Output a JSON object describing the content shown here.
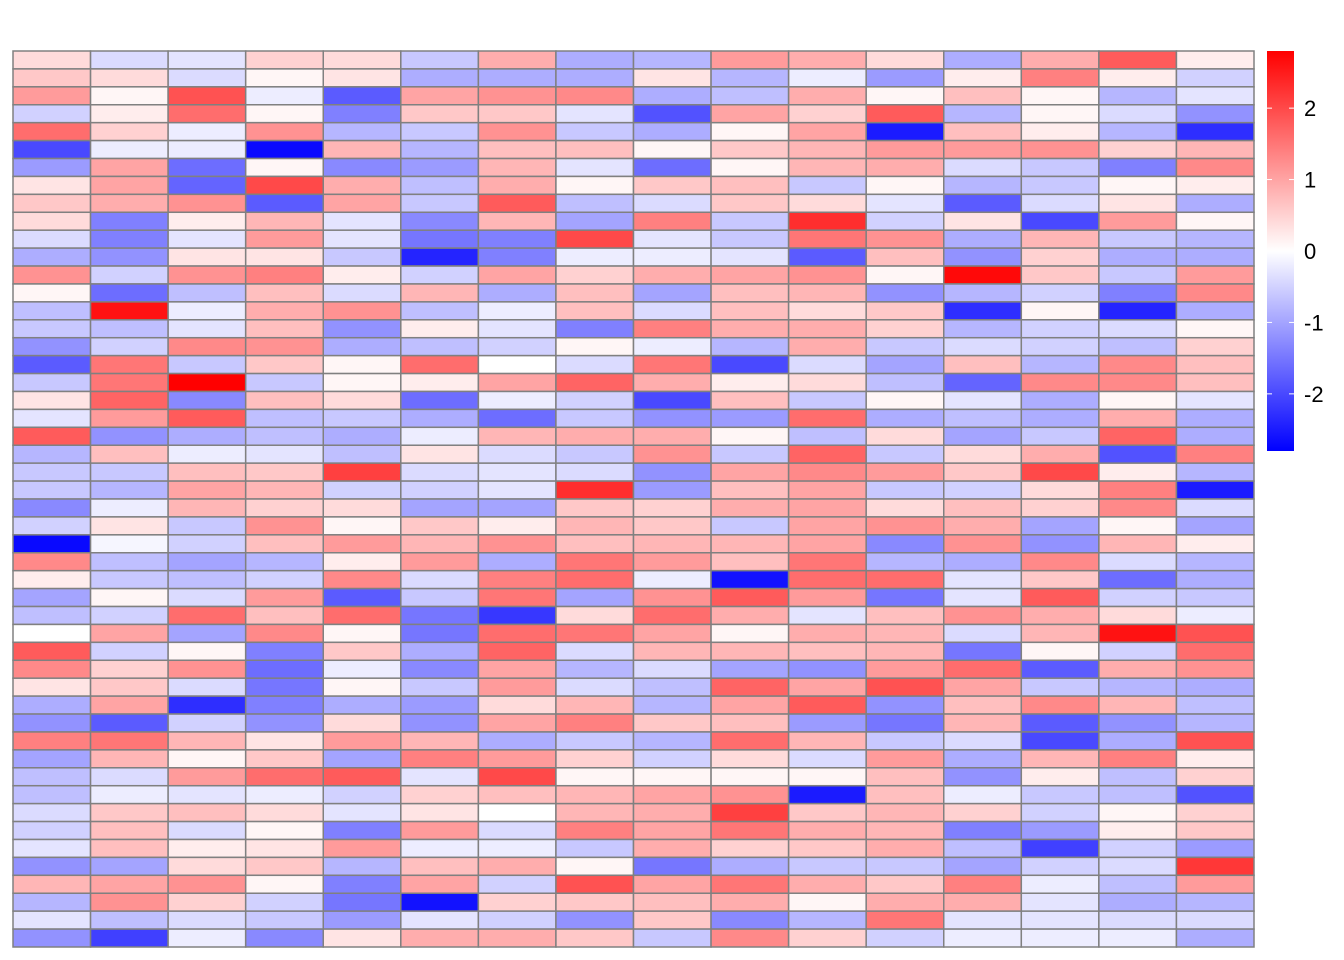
{
  "chart_data": {
    "type": "heatmap",
    "n_rows": 50,
    "n_cols": 16,
    "values": [
      [
        0.4,
        -0.4,
        -0.3,
        0.5,
        0.4,
        -0.6,
        0.9,
        -0.9,
        -0.8,
        1.1,
        0.9,
        0.4,
        -0.9,
        0.9,
        1.8,
        0.2
      ],
      [
        0.6,
        0.4,
        -0.4,
        0.1,
        0.3,
        -0.9,
        -0.9,
        -0.9,
        0.3,
        -0.8,
        -0.2,
        -1.1,
        0.2,
        1.4,
        0.2,
        -0.5
      ],
      [
        1.1,
        0.1,
        1.9,
        -0.2,
        -1.8,
        1.0,
        1.2,
        1.3,
        -0.9,
        -0.7,
        0.9,
        0.1,
        0.7,
        0.1,
        -0.8,
        -0.3
      ],
      [
        -0.5,
        0.2,
        1.6,
        0.1,
        -1.4,
        0.6,
        0.6,
        -0.3,
        -1.9,
        1.0,
        0.5,
        1.8,
        -0.8,
        0.1,
        -0.4,
        -1.2
      ],
      [
        1.6,
        0.5,
        -0.2,
        1.2,
        -0.8,
        -0.6,
        1.2,
        -0.6,
        -0.9,
        0.1,
        1.0,
        -2.5,
        0.7,
        0.2,
        -0.8,
        -2.3
      ],
      [
        -2.0,
        -0.2,
        -0.2,
        -2.7,
        0.8,
        -0.8,
        0.7,
        0.7,
        0.1,
        0.6,
        0.8,
        1.1,
        1.1,
        1.2,
        0.5,
        0.8
      ],
      [
        -1.1,
        1.0,
        -1.6,
        0.1,
        -1.3,
        -1.1,
        0.8,
        -0.3,
        -1.6,
        0.1,
        0.8,
        0.9,
        -0.4,
        -0.6,
        -1.4,
        1.3
      ],
      [
        0.3,
        1.0,
        -1.7,
        2.0,
        0.9,
        -0.7,
        0.9,
        0.1,
        0.6,
        0.7,
        -0.6,
        0.1,
        -0.8,
        -0.6,
        0.1,
        0.2
      ],
      [
        0.6,
        0.9,
        1.2,
        -1.8,
        1.0,
        -0.6,
        1.8,
        -0.7,
        -0.4,
        0.6,
        0.4,
        -0.3,
        -1.8,
        -0.4,
        0.3,
        -0.9
      ],
      [
        0.4,
        -1.4,
        0.2,
        0.8,
        -0.3,
        -1.3,
        0.8,
        -1.0,
        1.4,
        -0.6,
        2.3,
        -0.5,
        0.3,
        -2.0,
        1.1,
        0.1
      ],
      [
        -0.4,
        -1.4,
        -0.3,
        1.1,
        -0.3,
        -1.5,
        -1.4,
        2.0,
        -0.3,
        -0.6,
        1.5,
        1.2,
        -0.9,
        0.8,
        -0.6,
        -0.8
      ],
      [
        -0.9,
        -1.2,
        0.3,
        0.3,
        -0.6,
        -2.4,
        -1.4,
        -0.2,
        -0.2,
        -0.3,
        -1.8,
        0.7,
        -1.2,
        0.5,
        -0.9,
        -0.9
      ],
      [
        1.2,
        -0.5,
        1.2,
        1.4,
        0.2,
        -0.5,
        1.0,
        0.5,
        0.9,
        1.0,
        1.2,
        0.1,
        2.7,
        0.6,
        -0.6,
        1.1
      ],
      [
        0.1,
        -1.6,
        -0.7,
        0.7,
        -0.4,
        0.8,
        -0.9,
        0.7,
        -1.0,
        0.7,
        0.8,
        -1.2,
        -0.8,
        -0.5,
        -1.4,
        1.3
      ],
      [
        -0.7,
        2.6,
        -0.2,
        0.9,
        1.2,
        -0.7,
        -0.2,
        0.7,
        -0.4,
        0.7,
        0.4,
        0.6,
        -2.3,
        0.1,
        -2.4,
        -0.9
      ],
      [
        -0.6,
        -0.7,
        -0.3,
        0.7,
        -1.2,
        0.2,
        -0.3,
        -1.4,
        1.4,
        0.9,
        0.9,
        0.5,
        -0.8,
        -0.5,
        -0.4,
        0.1
      ],
      [
        -1.2,
        -0.5,
        1.3,
        1.2,
        -0.9,
        -0.7,
        -0.5,
        0.1,
        -0.2,
        -0.8,
        0.9,
        -0.6,
        -0.4,
        -0.5,
        -0.7,
        0.5
      ],
      [
        -1.8,
        1.5,
        -0.6,
        0.6,
        0.1,
        1.6,
        0.0,
        -0.4,
        1.5,
        -2.0,
        -0.4,
        -1.0,
        0.7,
        -0.8,
        1.3,
        0.7
      ],
      [
        -0.6,
        1.5,
        2.8,
        -0.6,
        0.1,
        0.2,
        1.0,
        1.7,
        0.9,
        0.2,
        0.4,
        -0.7,
        -1.7,
        1.3,
        1.3,
        0.7
      ],
      [
        0.3,
        1.7,
        -1.3,
        0.7,
        0.4,
        -1.6,
        -0.2,
        -0.5,
        -2.0,
        0.7,
        -0.6,
        0.1,
        -0.3,
        -0.9,
        0.1,
        -0.3
      ],
      [
        -0.3,
        1.1,
        1.8,
        -0.7,
        -0.6,
        -0.9,
        -1.6,
        -0.6,
        -1.2,
        -1.1,
        1.6,
        -0.9,
        -0.7,
        -0.9,
        0.9,
        -0.9
      ],
      [
        1.8,
        -1.2,
        -0.9,
        -0.7,
        -0.9,
        -0.2,
        0.8,
        0.9,
        0.9,
        0.1,
        -0.7,
        0.4,
        -1.0,
        -0.6,
        1.7,
        -0.9
      ],
      [
        -0.8,
        0.7,
        -0.2,
        -0.3,
        -0.7,
        0.3,
        -0.4,
        -0.6,
        1.2,
        -0.6,
        1.7,
        -0.6,
        0.4,
        0.9,
        -1.9,
        1.4
      ],
      [
        -0.6,
        -0.6,
        0.7,
        0.6,
        2.1,
        -0.4,
        -0.3,
        -0.4,
        -1.2,
        1.0,
        1.3,
        1.1,
        0.6,
        2.0,
        0.2,
        -0.8
      ],
      [
        -0.6,
        -0.8,
        1.0,
        0.8,
        -0.5,
        -0.5,
        -0.3,
        2.3,
        -1.1,
        0.7,
        1.0,
        -0.6,
        -0.5,
        0.4,
        1.4,
        -2.5
      ],
      [
        -1.3,
        -0.2,
        0.8,
        0.5,
        0.4,
        -1.0,
        -1.0,
        0.6,
        0.5,
        0.9,
        1.0,
        0.4,
        0.7,
        0.5,
        1.3,
        -0.4
      ],
      [
        -0.5,
        0.3,
        -0.6,
        1.2,
        0.1,
        0.6,
        0.2,
        0.8,
        0.6,
        -0.6,
        1.0,
        1.2,
        0.9,
        -1.0,
        0.1,
        -1.0
      ],
      [
        -2.7,
        -0.1,
        -0.5,
        0.7,
        1.1,
        0.8,
        1.2,
        0.7,
        0.8,
        0.8,
        1.0,
        -1.3,
        1.2,
        -1.2,
        0.8,
        0.2
      ],
      [
        1.3,
        -0.7,
        -1.0,
        -0.8,
        0.2,
        1.1,
        -0.9,
        1.5,
        1.1,
        0.7,
        1.5,
        -0.8,
        -0.9,
        1.3,
        -0.4,
        -0.8
      ],
      [
        0.2,
        -0.6,
        -0.7,
        -0.5,
        1.3,
        -0.4,
        1.4,
        1.6,
        -0.2,
        -2.6,
        1.6,
        1.6,
        -0.3,
        0.6,
        -1.6,
        -0.9
      ],
      [
        -1.0,
        0.1,
        -0.4,
        1.1,
        -1.8,
        -0.6,
        1.5,
        -1.0,
        1.2,
        1.8,
        1.1,
        -1.5,
        -0.3,
        1.8,
        -0.5,
        -0.6
      ],
      [
        -0.7,
        -0.5,
        1.6,
        0.7,
        1.6,
        -1.5,
        -2.2,
        0.4,
        1.6,
        0.9,
        -0.3,
        0.7,
        1.2,
        0.9,
        0.4,
        -0.2
      ],
      [
        0.0,
        1.0,
        -1.0,
        1.3,
        0.1,
        -1.5,
        1.6,
        1.5,
        1.0,
        0.1,
        0.9,
        0.8,
        -0.4,
        0.8,
        2.6,
        1.9
      ],
      [
        1.8,
        -0.5,
        0.1,
        -1.4,
        0.6,
        -0.9,
        1.7,
        -0.4,
        0.8,
        0.8,
        0.7,
        0.8,
        -1.5,
        0.1,
        -0.5,
        1.6
      ],
      [
        1.3,
        0.5,
        1.2,
        -1.6,
        -0.2,
        -1.3,
        1.0,
        -0.8,
        -0.4,
        -1.0,
        -1.2,
        1.1,
        1.6,
        -1.8,
        0.9,
        1.2
      ],
      [
        0.3,
        0.6,
        -0.4,
        -1.5,
        0.1,
        -0.6,
        1.1,
        -0.4,
        -0.7,
        1.7,
        1.0,
        1.9,
        1.0,
        -0.6,
        -0.8,
        -0.9
      ],
      [
        -0.9,
        1.0,
        -2.3,
        -1.4,
        -0.9,
        -1.1,
        0.4,
        0.8,
        -0.8,
        1.0,
        1.8,
        -1.2,
        0.7,
        1.3,
        0.8,
        -0.7
      ],
      [
        -1.2,
        -1.8,
        -0.5,
        -1.2,
        0.4,
        -1.2,
        1.0,
        1.4,
        0.6,
        0.7,
        -1.1,
        -1.5,
        0.8,
        -1.8,
        -1.2,
        -0.8
      ],
      [
        1.4,
        1.5,
        0.8,
        0.3,
        1.1,
        0.8,
        -0.9,
        -0.6,
        -0.8,
        1.6,
        0.8,
        -0.6,
        -0.4,
        -2.0,
        -0.9,
        1.9
      ],
      [
        -1.0,
        0.8,
        0.1,
        0.6,
        -1.0,
        1.4,
        1.1,
        0.5,
        -0.5,
        0.4,
        -0.4,
        1.1,
        -0.9,
        0.8,
        1.4,
        0.2
      ],
      [
        -0.7,
        -0.4,
        1.1,
        1.6,
        1.8,
        -0.3,
        2.0,
        0.1,
        0.1,
        0.1,
        0.1,
        0.7,
        -1.2,
        0.2,
        -0.7,
        0.5
      ],
      [
        -0.7,
        -0.2,
        -0.3,
        -0.2,
        -0.5,
        0.5,
        0.7,
        0.8,
        1.0,
        1.2,
        -2.5,
        0.7,
        -0.2,
        -0.6,
        -0.7,
        -1.9
      ],
      [
        -0.4,
        0.6,
        0.7,
        0.4,
        -0.3,
        0.3,
        0.0,
        0.8,
        0.9,
        2.1,
        0.6,
        0.8,
        0.5,
        -0.5,
        0.1,
        0.5
      ],
      [
        -0.5,
        0.7,
        -0.4,
        0.1,
        -1.4,
        1.1,
        -0.4,
        1.4,
        1.0,
        1.5,
        0.9,
        0.8,
        -1.4,
        -1.1,
        0.2,
        0.6
      ],
      [
        -0.3,
        0.7,
        0.2,
        0.3,
        1.1,
        -0.2,
        -0.2,
        -0.6,
        0.9,
        0.5,
        0.6,
        0.9,
        -0.7,
        -2.1,
        -0.5,
        -1.1
      ],
      [
        -1.2,
        -1.0,
        0.4,
        0.6,
        -0.8,
        0.7,
        0.9,
        0.1,
        -1.5,
        -0.9,
        -0.6,
        -0.6,
        -1.0,
        -0.5,
        -0.4,
        2.2
      ],
      [
        0.8,
        1.0,
        1.2,
        0.1,
        -1.4,
        1.0,
        -0.5,
        1.9,
        1.0,
        1.5,
        0.9,
        0.6,
        1.4,
        -0.2,
        -0.7,
        1.1
      ],
      [
        -0.8,
        1.2,
        0.5,
        -0.5,
        -1.5,
        -2.6,
        0.5,
        0.6,
        0.7,
        0.9,
        0.1,
        0.9,
        0.9,
        -0.3,
        -0.9,
        -0.8
      ],
      [
        -0.3,
        -0.7,
        -0.4,
        -0.6,
        -1.1,
        -0.3,
        -0.5,
        -1.2,
        0.6,
        -1.3,
        -0.8,
        1.5,
        -0.3,
        -0.3,
        -0.4,
        -0.4
      ],
      [
        -1.2,
        -2.1,
        -0.2,
        -1.3,
        0.3,
        0.9,
        0.9,
        0.6,
        -0.6,
        1.3,
        0.5,
        -0.5,
        -0.2,
        -0.2,
        -0.2,
        -0.9
      ]
    ],
    "colorbar": {
      "ticks": [
        2,
        1,
        0,
        -1,
        -2
      ],
      "tick_labels": [
        "2",
        "1",
        "0",
        "-1",
        "-2"
      ],
      "range": [
        -2.8,
        2.8
      ],
      "colors": [
        "#0000ff",
        "#ffffff",
        "#ff0000"
      ]
    },
    "cell_border_color": "#808080"
  }
}
